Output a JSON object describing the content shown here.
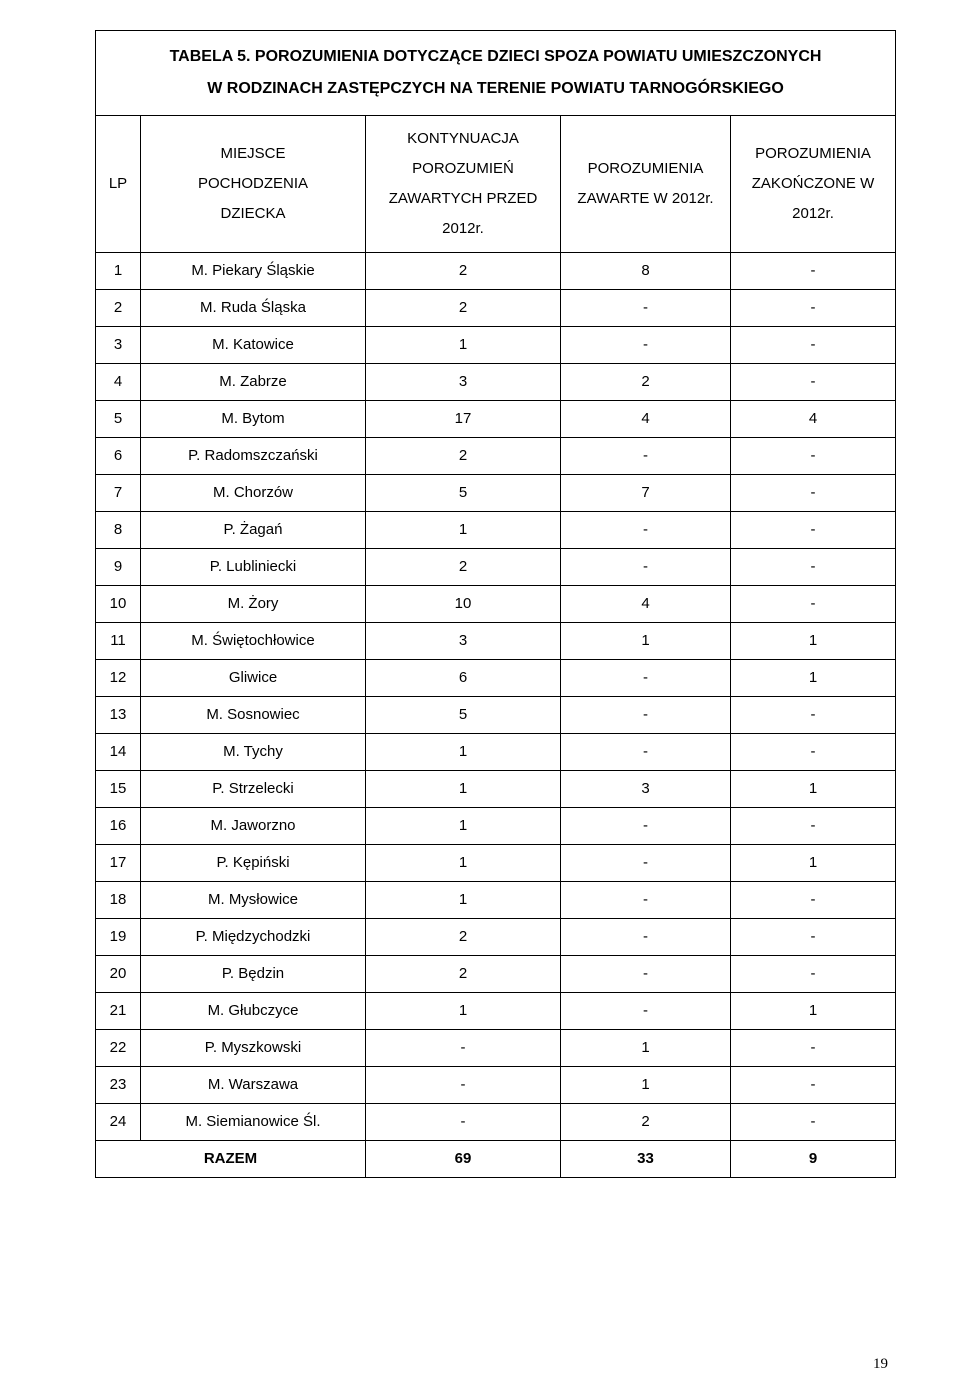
{
  "title_line1": "TABELA 5. POROZUMIENIA DOTYCZĄCE DZIECI SPOZA POWIATU UMIESZCZONYCH",
  "title_line2": "W RODZINACH ZASTĘPCZYCH NA TERENIE POWIATU TARNOGÓRSKIEGO",
  "headers": {
    "lp": "LP",
    "origin_l1": "MIEJSCE",
    "origin_l2": "POCHODZENIA",
    "origin_l3": "DZIECKA",
    "cont_l1": "KONTYNUACJA",
    "cont_l2": "POROZUMIEŃ",
    "cont_l3": "ZAWARTYCH PRZED",
    "cont_l4": "2012r.",
    "zaw_l1": "POROZUMIENIA",
    "zaw_l2": "ZAWARTE W 2012r.",
    "zak_l1": "POROZUMIENIA",
    "zak_l2": "ZAKOŃCZONE W",
    "zak_l3": "2012r."
  },
  "rows": [
    {
      "lp": "1",
      "name": "M. Piekary Śląskie",
      "c": "2",
      "z": "8",
      "e": "-"
    },
    {
      "lp": "2",
      "name": "M. Ruda Śląska",
      "c": "2",
      "z": "-",
      "e": "-"
    },
    {
      "lp": "3",
      "name": "M. Katowice",
      "c": "1",
      "z": "-",
      "e": "-"
    },
    {
      "lp": "4",
      "name": "M. Zabrze",
      "c": "3",
      "z": "2",
      "e": "-"
    },
    {
      "lp": "5",
      "name": "M. Bytom",
      "c": "17",
      "z": "4",
      "e": "4"
    },
    {
      "lp": "6",
      "name": "P. Radomszczański",
      "c": "2",
      "z": "-",
      "e": "-"
    },
    {
      "lp": "7",
      "name": "M. Chorzów",
      "c": "5",
      "z": "7",
      "e": "-"
    },
    {
      "lp": "8",
      "name": "P. Żagań",
      "c": "1",
      "z": "-",
      "e": "-"
    },
    {
      "lp": "9",
      "name": "P. Lubliniecki",
      "c": "2",
      "z": "-",
      "e": "-"
    },
    {
      "lp": "10",
      "name": "M. Żory",
      "c": "10",
      "z": "4",
      "e": "-"
    },
    {
      "lp": "11",
      "name": "M. Świętochłowice",
      "c": "3",
      "z": "1",
      "e": "1"
    },
    {
      "lp": "12",
      "name": "Gliwice",
      "c": "6",
      "z": "-",
      "e": "1"
    },
    {
      "lp": "13",
      "name": "M. Sosnowiec",
      "c": "5",
      "z": "-",
      "e": "-"
    },
    {
      "lp": "14",
      "name": "M. Tychy",
      "c": "1",
      "z": "-",
      "e": "-"
    },
    {
      "lp": "15",
      "name": "P. Strzelecki",
      "c": "1",
      "z": "3",
      "e": "1"
    },
    {
      "lp": "16",
      "name": "M. Jaworzno",
      "c": "1",
      "z": "-",
      "e": "-"
    },
    {
      "lp": "17",
      "name": "P. Kępiński",
      "c": "1",
      "z": "-",
      "e": "1"
    },
    {
      "lp": "18",
      "name": "M. Mysłowice",
      "c": "1",
      "z": "-",
      "e": "-"
    },
    {
      "lp": "19",
      "name": "P. Międzychodzki",
      "c": "2",
      "z": "-",
      "e": "-"
    },
    {
      "lp": "20",
      "name": "P. Będzin",
      "c": "2",
      "z": "-",
      "e": "-"
    },
    {
      "lp": "21",
      "name": "M. Głubczyce",
      "c": "1",
      "z": "-",
      "e": "1"
    },
    {
      "lp": "22",
      "name": "P. Myszkowski",
      "c": "-",
      "z": "1",
      "e": "-"
    },
    {
      "lp": "23",
      "name": "M. Warszawa",
      "c": "-",
      "z": "1",
      "e": "-"
    },
    {
      "lp": "24",
      "name": "M. Siemianowice Śl.",
      "c": "-",
      "z": "2",
      "e": "-"
    }
  ],
  "total": {
    "label": "RAZEM",
    "c": "69",
    "z": "33",
    "e": "9"
  },
  "page_number": "19",
  "colors": {
    "text": "#000000",
    "background": "#ffffff",
    "border": "#000000"
  },
  "font_sizes": {
    "title": 16,
    "header": 15,
    "body": 15,
    "page_num": 15
  }
}
